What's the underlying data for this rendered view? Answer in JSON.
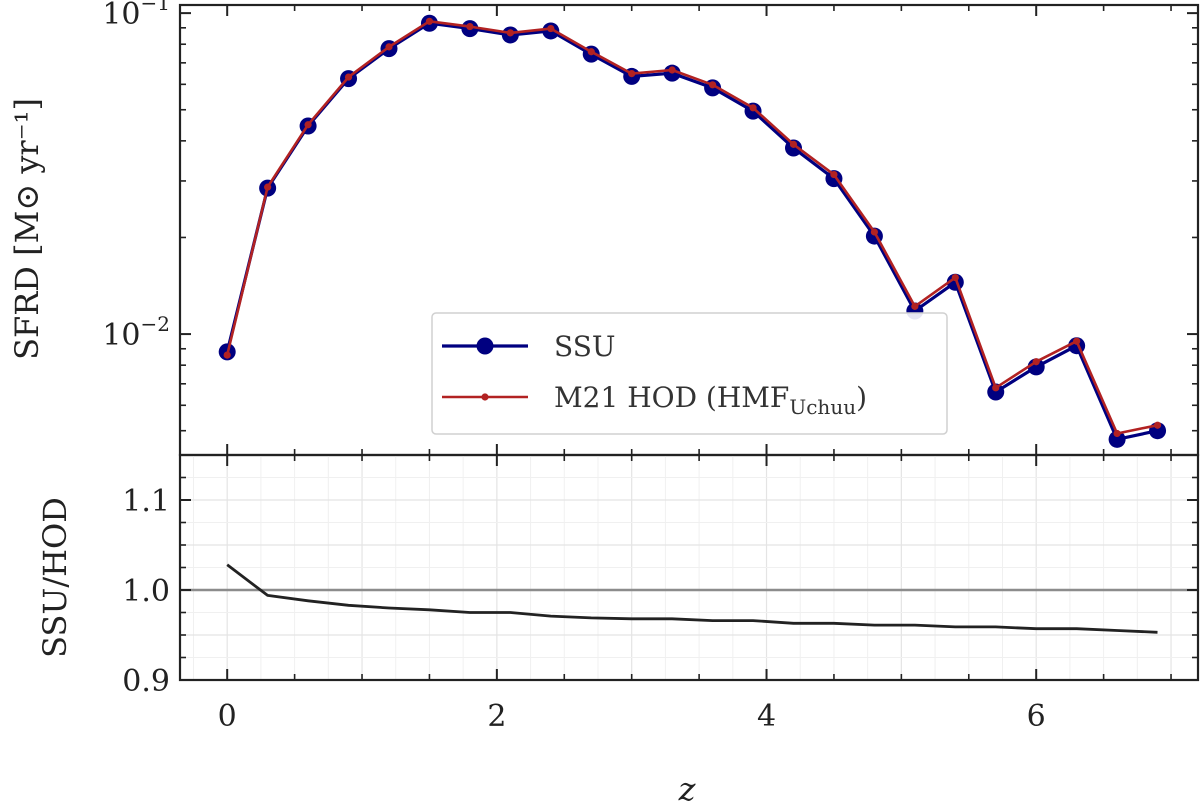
{
  "chart_data": [
    {
      "type": "line",
      "yscale": "log",
      "ylabel": "SFRD [M⊙ yr⁻¹]",
      "xlim": [
        -0.35,
        7.2
      ],
      "ylim": [
        0.0042,
        0.106
      ],
      "y_ticks": [
        {
          "value": 0.1,
          "base": "10",
          "exp": "−1"
        },
        {
          "value": 0.01,
          "base": "10",
          "exp": "−2"
        }
      ],
      "legend": {
        "placement": "lower-center",
        "entries": [
          {
            "series": "SSU",
            "label": "SSU"
          },
          {
            "series": "M21 HOD (HMF_Uchuu)",
            "label": "M21 HOD (HMF",
            "subscript": "Uchuu",
            "suffix": ")"
          }
        ]
      },
      "series": [
        {
          "name": "SSU",
          "color": "#000080",
          "marker": "large-circle",
          "x": [
            0.0,
            0.3,
            0.6,
            0.9,
            1.2,
            1.5,
            1.8,
            2.1,
            2.4,
            2.7,
            3.0,
            3.3,
            3.6,
            3.9,
            4.2,
            4.5,
            4.8,
            5.1,
            5.4,
            5.7,
            6.0,
            6.3,
            6.6,
            6.9
          ],
          "values": [
            0.0088,
            0.0285,
            0.0445,
            0.0625,
            0.0775,
            0.093,
            0.0895,
            0.0855,
            0.088,
            0.0745,
            0.0635,
            0.065,
            0.0585,
            0.0495,
            0.038,
            0.0305,
            0.0202,
            0.0118,
            0.0145,
            0.0066,
            0.0079,
            0.0092,
            0.0047,
            0.005
          ]
        },
        {
          "name": "M21 HOD (HMF_Uchuu)",
          "color": "#b22222",
          "marker": "small-dot",
          "x": [
            0.0,
            0.3,
            0.6,
            0.9,
            1.2,
            1.5,
            1.8,
            2.1,
            2.4,
            2.7,
            3.0,
            3.3,
            3.6,
            3.9,
            4.2,
            4.5,
            4.8,
            5.1,
            5.4,
            5.7,
            6.0,
            6.3,
            6.6,
            6.9
          ],
          "values": [
            0.0086,
            0.0287,
            0.0449,
            0.0632,
            0.0785,
            0.0943,
            0.0908,
            0.0868,
            0.0895,
            0.0758,
            0.0648,
            0.0665,
            0.0598,
            0.0507,
            0.039,
            0.0314,
            0.0208,
            0.0122,
            0.015,
            0.0068,
            0.0082,
            0.0095,
            0.0049,
            0.0052
          ]
        }
      ]
    },
    {
      "type": "line",
      "xlabel": "z",
      "ylabel": "SSU/HOD",
      "xlim": [
        -0.35,
        7.2
      ],
      "ylim": [
        0.9,
        1.15
      ],
      "x_ticks": [
        "0",
        "2",
        "4",
        "6"
      ],
      "y_ticks": [
        "0.9",
        "1.0",
        "1.1"
      ],
      "reference_line": 1.0,
      "grid": true,
      "series": [
        {
          "name": "SSU/HOD",
          "color": "#222222",
          "x": [
            0.0,
            0.3,
            0.6,
            0.9,
            1.2,
            1.5,
            1.8,
            2.1,
            2.4,
            2.7,
            3.0,
            3.3,
            3.6,
            3.9,
            4.2,
            4.5,
            4.8,
            5.1,
            5.4,
            5.7,
            6.0,
            6.3,
            6.6,
            6.9
          ],
          "values": [
            1.028,
            0.994,
            0.988,
            0.983,
            0.98,
            0.978,
            0.975,
            0.975,
            0.971,
            0.969,
            0.968,
            0.968,
            0.966,
            0.966,
            0.963,
            0.963,
            0.961,
            0.961,
            0.959,
            0.959,
            0.957,
            0.957,
            0.955,
            0.953
          ]
        }
      ]
    }
  ]
}
